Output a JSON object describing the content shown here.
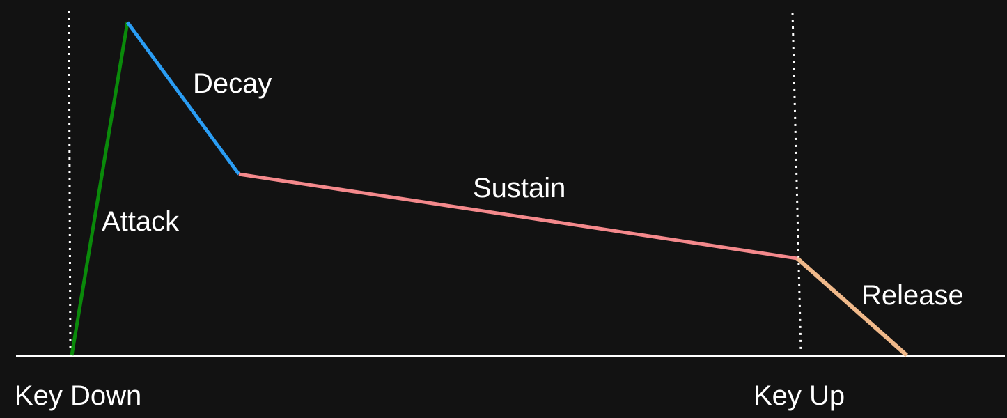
{
  "labels": {
    "attack": "Attack",
    "decay": "Decay",
    "sustain": "Sustain",
    "release": "Release",
    "key_down": "Key Down",
    "key_up": "Key Up"
  },
  "colors": {
    "background": "#121212",
    "attack": "#0a8a0a",
    "decay": "#2a9df4",
    "sustain": "#f4898c",
    "release": "#f0b98a",
    "baseline": "#ffffff",
    "marker": "#ffffff"
  }
}
